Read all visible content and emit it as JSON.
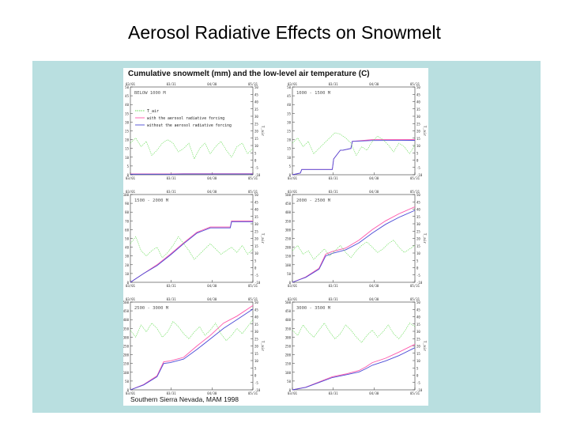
{
  "slide": {
    "title": "Aerosol Radiative Effects on Snowmelt"
  },
  "figure": {
    "title": "Cumulative snowmelt (mm) and the low-level air temperature (C)",
    "note": "Southern Sierra Nevada, MAM 1998"
  },
  "colors": {
    "with": "#ff55aa",
    "without": "#4b4bd6",
    "tair": "#66dd55",
    "axis": "#333333"
  },
  "chart_data": [
    {
      "type": "line",
      "panel": "BELOW 1000 M",
      "x_ticks": [
        "03/01",
        "03/31",
        "04/30",
        "05/31"
      ],
      "left_axis": {
        "label": "",
        "ticks": [
          "0",
          "5",
          "10",
          "15",
          "20",
          "25",
          "30",
          "35",
          "40",
          "45",
          "50"
        ],
        "ylim": [
          0,
          50
        ]
      },
      "right_axis": {
        "label": "T_air",
        "ticks": [
          "-10",
          "-5",
          "0",
          "5",
          "10",
          "15",
          "20",
          "25",
          "30",
          "35",
          "40",
          "45",
          "50"
        ],
        "ylim": [
          -10,
          15
        ]
      },
      "legend": [
        "T_air",
        "with the aerosol radiative forcing",
        "without the aerosol radiative forcing"
      ],
      "series": [
        {
          "name": "with the aerosol radiative forcing",
          "x": [
            0,
            10,
            20,
            30,
            40,
            50,
            60,
            70,
            80,
            90,
            92
          ],
          "values": [
            0.5,
            0.5,
            0.5,
            0.5,
            0.6,
            0.6,
            0.6,
            0.6,
            0.6,
            0.6,
            0.6
          ]
        },
        {
          "name": "without the aerosol radiative forcing",
          "x": [
            0,
            10,
            20,
            30,
            40,
            50,
            60,
            70,
            80,
            90,
            92
          ],
          "values": [
            0.3,
            0.3,
            0.3,
            0.3,
            0.4,
            0.4,
            0.4,
            0.4,
            0.4,
            0.4,
            0.4
          ]
        },
        {
          "name": "T_air",
          "x": [
            0,
            4,
            8,
            12,
            16,
            20,
            24,
            28,
            32,
            36,
            40,
            44,
            48,
            52,
            56,
            60,
            64,
            68,
            72,
            76,
            80,
            84,
            88,
            92
          ],
          "values": [
            -1.0,
            0.5,
            -2.0,
            -0.5,
            -4.5,
            -3.0,
            -1.0,
            0.0,
            -1.0,
            -3.5,
            -2.5,
            -1.0,
            -5.5,
            -2.5,
            -1.0,
            -4.0,
            -2.0,
            -0.5,
            -3.0,
            -5.0,
            -2.0,
            -1.0,
            -4.0,
            -2.5
          ]
        }
      ]
    },
    {
      "type": "line",
      "panel": "1000 - 1500 M",
      "x_ticks": [
        "03/01",
        "03/31",
        "04/30",
        "05/31"
      ],
      "left_axis": {
        "label": "",
        "ticks": [
          "0",
          "5",
          "10",
          "15",
          "20",
          "25",
          "30",
          "35",
          "40",
          "45",
          "50"
        ],
        "ylim": [
          0,
          50
        ]
      },
      "right_axis": {
        "label": "T_air",
        "ticks": [
          "-10",
          "-5",
          "0",
          "5",
          "10",
          "15",
          "20",
          "25",
          "30",
          "35",
          "40",
          "45",
          "50"
        ],
        "ylim": [
          -10,
          15
        ]
      },
      "series": [
        {
          "name": "with the aerosol radiative forcing",
          "x": [
            0,
            6,
            7,
            30,
            31,
            36,
            38,
            44,
            45,
            60,
            92
          ],
          "values": [
            0,
            1,
            3,
            3,
            9,
            14,
            14,
            15,
            19,
            20,
            20
          ]
        },
        {
          "name": "without the aerosol radiative forcing",
          "x": [
            0,
            6,
            7,
            30,
            31,
            36,
            38,
            44,
            45,
            60,
            92
          ],
          "values": [
            0,
            1,
            3,
            3,
            9,
            14,
            14,
            15,
            19,
            19.5,
            19.6
          ]
        },
        {
          "name": "T_air",
          "x": [
            0,
            4,
            8,
            12,
            16,
            20,
            24,
            28,
            32,
            36,
            40,
            44,
            48,
            52,
            56,
            60,
            64,
            68,
            72,
            76,
            80,
            84,
            88,
            92
          ],
          "values": [
            -1.0,
            0.5,
            -2.0,
            -0.5,
            -4.0,
            -2.5,
            -1.0,
            0.5,
            2.0,
            1.5,
            0.5,
            -1.0,
            -4.5,
            -2.0,
            -3.0,
            -0.5,
            1.0,
            0.0,
            -1.5,
            -3.5,
            -1.0,
            -2.0,
            -4.0,
            -1.5
          ]
        }
      ]
    },
    {
      "type": "line",
      "panel": "1500 - 2000 M",
      "x_ticks": [
        "03/01",
        "03/31",
        "04/30",
        "05/31"
      ],
      "left_axis": {
        "label": "",
        "ticks": [
          "0",
          "10",
          "20",
          "30",
          "40",
          "50",
          "60",
          "70",
          "80",
          "90",
          "100"
        ],
        "ylim": [
          0,
          100
        ]
      },
      "right_axis": {
        "label": "T_air",
        "ticks": [
          "-10",
          "-5",
          "0",
          "5",
          "10",
          "15",
          "20",
          "25",
          "30",
          "35",
          "40",
          "45",
          "50"
        ],
        "ylim": [
          -10,
          15
        ]
      },
      "series": [
        {
          "name": "with the aerosol radiative forcing",
          "x": [
            0,
            10,
            20,
            30,
            40,
            50,
            60,
            70,
            75,
            76,
            92
          ],
          "values": [
            0,
            10,
            20,
            32,
            45,
            57,
            63,
            63,
            63,
            70,
            70
          ]
        },
        {
          "name": "without the aerosol radiative forcing",
          "x": [
            0,
            10,
            20,
            30,
            40,
            50,
            60,
            70,
            75,
            76,
            92
          ],
          "values": [
            0,
            10,
            19,
            31,
            44,
            56,
            62,
            62,
            62,
            69,
            69
          ]
        },
        {
          "name": "T_air",
          "x": [
            0,
            4,
            8,
            12,
            16,
            20,
            24,
            28,
            32,
            36,
            40,
            44,
            48,
            52,
            56,
            60,
            64,
            68,
            72,
            76,
            80,
            84,
            88,
            92
          ],
          "values": [
            1.0,
            3.0,
            -1.0,
            -2.5,
            -1.0,
            0.0,
            -3.0,
            -1.5,
            0.5,
            3.0,
            1.0,
            -1.0,
            -3.5,
            -2.0,
            -0.5,
            1.0,
            -0.5,
            -2.0,
            -1.0,
            0.0,
            -1.5,
            0.5,
            -2.0,
            -0.5
          ]
        }
      ]
    },
    {
      "type": "line",
      "panel": "2000 - 2500 M",
      "x_ticks": [
        "03/01",
        "03/31",
        "04/30",
        "05/31"
      ],
      "left_axis": {
        "label": "",
        "ticks": [
          "0",
          "50",
          "100",
          "150",
          "200",
          "250",
          "300",
          "350",
          "400",
          "450",
          "500"
        ],
        "ylim": [
          0,
          500
        ]
      },
      "right_axis": {
        "label": "T_air",
        "ticks": [
          "-10",
          "-5",
          "0",
          "5",
          "10",
          "15",
          "20",
          "25",
          "30",
          "35",
          "40",
          "45",
          "50"
        ],
        "ylim": [
          -10,
          15
        ]
      },
      "series": [
        {
          "name": "with the aerosol radiative forcing",
          "x": [
            0,
            10,
            20,
            25,
            30,
            40,
            50,
            60,
            70,
            80,
            92
          ],
          "values": [
            0,
            30,
            80,
            160,
            175,
            195,
            240,
            300,
            350,
            390,
            430
          ]
        },
        {
          "name": "without the aerosol radiative forcing",
          "x": [
            0,
            10,
            20,
            25,
            30,
            40,
            50,
            60,
            70,
            80,
            92
          ],
          "values": [
            0,
            28,
            75,
            150,
            165,
            185,
            225,
            280,
            330,
            370,
            410
          ]
        },
        {
          "name": "T_air",
          "x": [
            0,
            4,
            8,
            12,
            16,
            20,
            24,
            28,
            32,
            36,
            40,
            44,
            48,
            52,
            56,
            60,
            64,
            68,
            72,
            76,
            80,
            84,
            88,
            92
          ],
          "values": [
            -1.0,
            0.5,
            -2.0,
            -1.0,
            -3.5,
            -2.0,
            -0.5,
            -2.5,
            -1.0,
            0.5,
            -1.5,
            -3.0,
            -1.0,
            0.5,
            1.5,
            0.0,
            -1.5,
            -0.5,
            1.0,
            2.0,
            0.0,
            -1.5,
            -0.5,
            0.5
          ]
        }
      ]
    },
    {
      "type": "line",
      "panel": "2500 - 3000 M",
      "x_ticks": [
        "03/01",
        "03/31",
        "04/30",
        "05/31"
      ],
      "left_axis": {
        "label": "",
        "ticks": [
          "0",
          "50",
          "100",
          "150",
          "200",
          "250",
          "300",
          "350",
          "400",
          "450",
          "500"
        ],
        "ylim": [
          0,
          500
        ]
      },
      "right_axis": {
        "label": "T_air",
        "ticks": [
          "-10",
          "-5",
          "0",
          "5",
          "10",
          "15",
          "20",
          "25",
          "30",
          "35",
          "40",
          "45",
          "50"
        ],
        "ylim": [
          -10,
          15
        ]
      },
      "series": [
        {
          "name": "with the aerosol radiative forcing",
          "x": [
            0,
            10,
            20,
            25,
            30,
            40,
            50,
            60,
            70,
            80,
            92
          ],
          "values": [
            0,
            30,
            80,
            160,
            165,
            185,
            250,
            310,
            380,
            420,
            480
          ]
        },
        {
          "name": "without the aerosol radiative forcing",
          "x": [
            0,
            10,
            20,
            25,
            30,
            40,
            50,
            60,
            70,
            80,
            92
          ],
          "values": [
            0,
            28,
            75,
            150,
            155,
            175,
            230,
            290,
            350,
            400,
            460
          ]
        },
        {
          "name": "T_air",
          "x": [
            0,
            4,
            8,
            12,
            16,
            20,
            24,
            28,
            32,
            36,
            40,
            44,
            48,
            52,
            56,
            60,
            64,
            68,
            72,
            76,
            80,
            84,
            88,
            92
          ],
          "values": [
            7.0,
            5.0,
            8.5,
            6.5,
            9.0,
            7.5,
            5.0,
            6.5,
            9.5,
            8.0,
            6.0,
            4.5,
            6.5,
            8.0,
            5.5,
            7.0,
            9.0,
            6.0,
            4.0,
            5.5,
            7.5,
            6.0,
            8.0,
            10.0
          ]
        }
      ]
    },
    {
      "type": "line",
      "panel": "3000 - 3500 M",
      "x_ticks": [
        "03/01",
        "03/31",
        "04/30",
        "05/31"
      ],
      "left_axis": {
        "label": "",
        "ticks": [
          "0",
          "50",
          "100",
          "150",
          "200",
          "250",
          "300",
          "350",
          "400",
          "450",
          "500"
        ],
        "ylim": [
          0,
          500
        ]
      },
      "right_axis": {
        "label": "T_air",
        "ticks": [
          "-10",
          "-5",
          "0",
          "5",
          "10",
          "15",
          "20",
          "25",
          "30",
          "35",
          "40",
          "45",
          "50"
        ],
        "ylim": [
          -10,
          15
        ]
      },
      "series": [
        {
          "name": "with the aerosol radiative forcing",
          "x": [
            0,
            10,
            20,
            30,
            40,
            50,
            55,
            60,
            70,
            80,
            92
          ],
          "values": [
            0,
            15,
            45,
            75,
            90,
            110,
            130,
            155,
            180,
            215,
            260
          ]
        },
        {
          "name": "without the aerosol radiative forcing",
          "x": [
            0,
            10,
            20,
            30,
            40,
            50,
            55,
            60,
            70,
            80,
            92
          ],
          "values": [
            0,
            14,
            42,
            70,
            85,
            102,
            120,
            140,
            165,
            195,
            240
          ]
        },
        {
          "name": "T_air",
          "x": [
            0,
            4,
            8,
            12,
            16,
            20,
            24,
            28,
            32,
            36,
            40,
            44,
            48,
            52,
            56,
            60,
            64,
            68,
            72,
            76,
            80,
            84,
            88,
            92
          ],
          "values": [
            7.0,
            5.5,
            8.5,
            6.5,
            5.0,
            7.0,
            9.0,
            6.5,
            4.5,
            6.0,
            8.5,
            7.0,
            5.0,
            3.5,
            5.5,
            7.0,
            5.0,
            6.5,
            8.5,
            6.0,
            4.5,
            6.5,
            9.0,
            8.0
          ]
        }
      ]
    }
  ]
}
